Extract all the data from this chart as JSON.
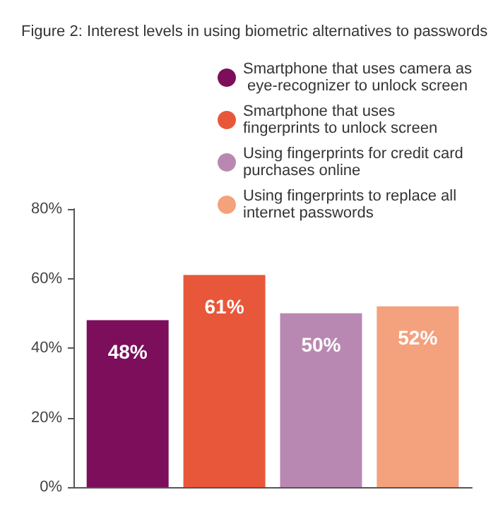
{
  "chart_data": {
    "type": "bar",
    "title": "Figure 2: Interest levels in using biometric alternatives to passwords",
    "categories": [
      null
    ],
    "series": [
      {
        "name": "Smartphone that uses camera as eye-recognizer to unlock screen",
        "color": "#7c0e5b",
        "values": [
          48
        ],
        "value_labels": [
          "48%"
        ]
      },
      {
        "name": "Smartphone that uses fingerprints to unlock screen",
        "color": "#e8573a",
        "values": [
          61
        ],
        "value_labels": [
          "61%"
        ]
      },
      {
        "name": "Using fingerprints for credit card purchases online",
        "color": "#b988b2",
        "values": [
          50
        ],
        "value_labels": [
          "50%"
        ]
      },
      {
        "name": "Using fingerprints to replace all internet passwords",
        "color": "#f4a17d",
        "values": [
          52
        ],
        "value_labels": [
          "52%"
        ]
      }
    ],
    "ylim": [
      0,
      80
    ],
    "yticks": [
      {
        "value": 0,
        "label": "0%"
      },
      {
        "value": 20,
        "label": "20%"
      },
      {
        "value": 40,
        "label": "40%"
      },
      {
        "value": 60,
        "label": "60%"
      },
      {
        "value": 80,
        "label": "80%"
      }
    ],
    "grid": false,
    "legend": "top right"
  }
}
